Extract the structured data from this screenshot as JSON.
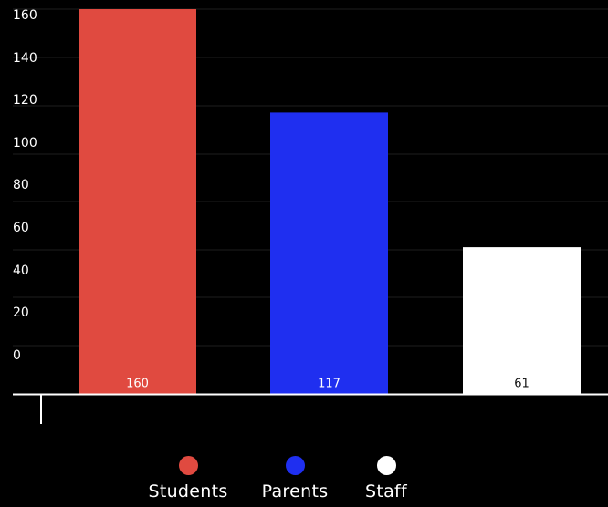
{
  "chart_data": {
    "type": "bar",
    "categories": [
      "Students",
      "Parents",
      "Staff"
    ],
    "values": [
      160,
      117,
      61
    ],
    "colors": [
      "#e04a40",
      "#1f2ff0",
      "#ffffff"
    ],
    "value_label_colors": [
      "#ffffff",
      "#ffffff",
      "#111111"
    ],
    "y_ticks": [
      "0",
      "20",
      "40",
      "60",
      "80",
      "100",
      "120",
      "140",
      "160"
    ],
    "ylim": [
      0,
      160
    ],
    "grid": true,
    "legend_position": "bottom",
    "background": "#000000",
    "gridline_color": "#1e1e1e",
    "axis_color": "#ffffff"
  },
  "legend": {
    "items": [
      {
        "label": "Students",
        "color": "#e04a40"
      },
      {
        "label": "Parents",
        "color": "#1f2ff0"
      },
      {
        "label": "Staff",
        "color": "#ffffff"
      }
    ]
  }
}
